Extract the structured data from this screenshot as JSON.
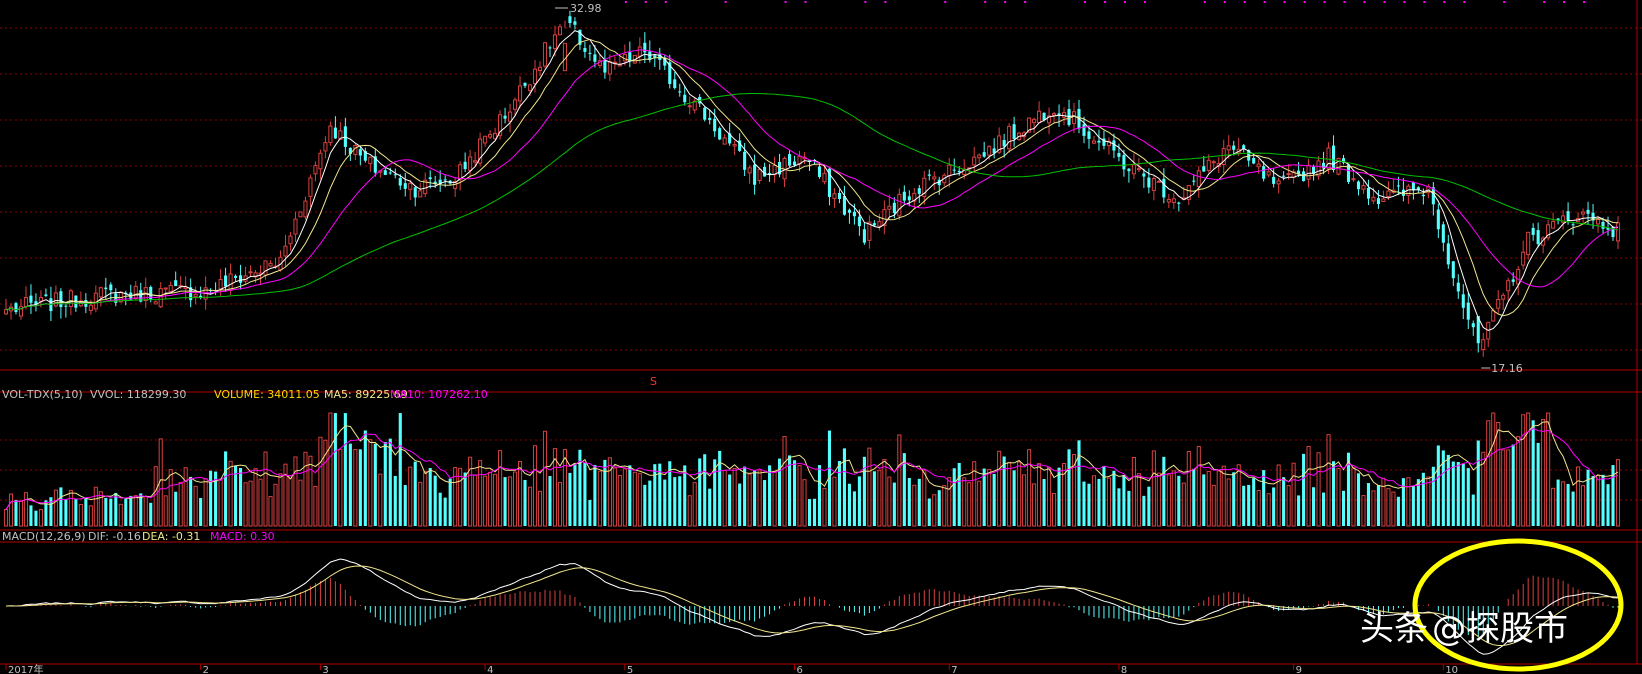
{
  "colors": {
    "background": "#000000",
    "up": "#d84040",
    "down": "#54ffff",
    "grid": "#8b0000",
    "ma5": "#ffffff",
    "ma10": "#f0e68c",
    "ma20": "#ff00ff",
    "ma60": "#00c000",
    "annotation_circle": "#ffff00",
    "label_text": "#c0c0c0"
  },
  "price_panel": {
    "high_marker": "32.98",
    "low_marker": "17.16",
    "split_marker": "S"
  },
  "vol_panel": {
    "label": "VOL-TDX(5,10)",
    "vvol": "VVOL: 118299.30",
    "volume": "VOLUME: 34011.05",
    "ma5": "MA5: 89225.69",
    "ma10": "MA10: 107262.10"
  },
  "macd_panel": {
    "label": "MACD(12,26,9)",
    "dif": "DIF: -0.16",
    "dea": "DEA: -0.31",
    "macd": "MACD: 0.30"
  },
  "x_axis": {
    "labels": [
      "2017年",
      "2",
      "3",
      "4",
      "5",
      "6",
      "7",
      "8",
      "9",
      "10"
    ]
  },
  "watermark": {
    "brand": "头条",
    "handle": "@探股市"
  },
  "chart_data": {
    "type": "candlestick",
    "title": "",
    "price_anchors": [
      {
        "i": 0,
        "p": 19.2
      },
      {
        "i": 20,
        "p": 19.9
      },
      {
        "i": 40,
        "p": 20.1
      },
      {
        "i": 55,
        "p": 21.5
      },
      {
        "i": 65,
        "p": 28.0
      },
      {
        "i": 72,
        "p": 26.2
      },
      {
        "i": 82,
        "p": 25.0
      },
      {
        "i": 90,
        "p": 25.5
      },
      {
        "i": 100,
        "p": 28.5
      },
      {
        "i": 112,
        "p": 32.98
      },
      {
        "i": 120,
        "p": 30.5
      },
      {
        "i": 128,
        "p": 31.5
      },
      {
        "i": 140,
        "p": 28.5
      },
      {
        "i": 150,
        "p": 25.5
      },
      {
        "i": 160,
        "p": 26.5
      },
      {
        "i": 172,
        "p": 22.8
      },
      {
        "i": 182,
        "p": 25.0
      },
      {
        "i": 195,
        "p": 26.5
      },
      {
        "i": 210,
        "p": 29.0
      },
      {
        "i": 225,
        "p": 26.0
      },
      {
        "i": 235,
        "p": 24.5
      },
      {
        "i": 245,
        "p": 27.0
      },
      {
        "i": 255,
        "p": 25.0
      },
      {
        "i": 265,
        "p": 26.5
      },
      {
        "i": 275,
        "p": 24.5
      },
      {
        "i": 285,
        "p": 25.0
      },
      {
        "i": 290,
        "p": 21.0
      },
      {
        "i": 295,
        "p": 17.16
      },
      {
        "i": 305,
        "p": 22.5
      },
      {
        "i": 315,
        "p": 23.8
      },
      {
        "i": 323,
        "p": 23.0
      }
    ],
    "bar_count": 324,
    "price_range": [
      16.8,
      33.3
    ],
    "volume_range": [
      0,
      190000
    ],
    "macd_range": [
      -2.3,
      1.9
    ],
    "month_ticks": [
      {
        "i": 0,
        "label": "2017年"
      },
      {
        "i": 39,
        "label": "2"
      },
      {
        "i": 63,
        "label": "3"
      },
      {
        "i": 96,
        "label": "4"
      },
      {
        "i": 124,
        "label": "5"
      },
      {
        "i": 158,
        "label": "6"
      },
      {
        "i": 189,
        "label": "7"
      },
      {
        "i": 223,
        "label": "8"
      },
      {
        "i": 258,
        "label": "9"
      },
      {
        "i": 288,
        "label": "10"
      }
    ],
    "series": [
      {
        "name": "MA5",
        "values": []
      },
      {
        "name": "MA10",
        "values": []
      },
      {
        "name": "MA20",
        "values": []
      },
      {
        "name": "MA60",
        "values": []
      }
    ]
  }
}
